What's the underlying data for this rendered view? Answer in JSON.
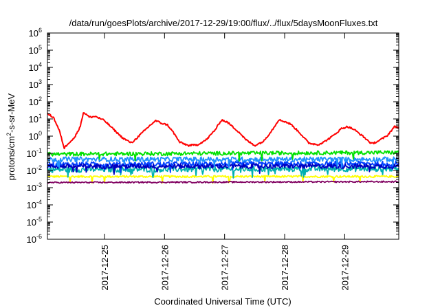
{
  "chart_data": {
    "type": "line",
    "title": "/data/run/goesPlots/archive/2017-12-29/19:00/flux/../flux/5daysMoonFluxes.txt",
    "xlabel": "Coordinated Universal Time (UTC)",
    "ylabel_parts": [
      "protons/cm",
      "2",
      "-s-sr-MeV"
    ],
    "y_scale": "log",
    "ylim": [
      -6,
      6
    ],
    "y_ticks": [
      {
        "exp": 6,
        "base": "10",
        "sup": "6"
      },
      {
        "exp": 5,
        "base": "10",
        "sup": "5"
      },
      {
        "exp": 4,
        "base": "10",
        "sup": "4"
      },
      {
        "exp": 3,
        "base": "10",
        "sup": "3"
      },
      {
        "exp": 2,
        "base": "10",
        "sup": "2"
      },
      {
        "exp": 1,
        "base": "10",
        "sup": "1"
      },
      {
        "exp": 0,
        "base": "10",
        "sup": "0"
      },
      {
        "exp": -1,
        "base": "10",
        "sup": "-1"
      },
      {
        "exp": -2,
        "base": "10",
        "sup": "-2"
      },
      {
        "exp": -3,
        "base": "10",
        "sup": "-3"
      },
      {
        "exp": -4,
        "base": "10",
        "sup": "-4"
      },
      {
        "exp": -5,
        "base": "10",
        "sup": "-5"
      },
      {
        "exp": -6,
        "base": "10",
        "sup": "-6"
      }
    ],
    "x_range_days": [
      0,
      5.85
    ],
    "x_ticks": [
      {
        "day": 0.95,
        "label": "2017-12-25"
      },
      {
        "day": 1.95,
        "label": "2017-12-26"
      },
      {
        "day": 2.95,
        "label": "2017-12-27"
      },
      {
        "day": 3.95,
        "label": "2017-12-28"
      },
      {
        "day": 4.95,
        "label": "2017-12-29"
      }
    ],
    "grid": false,
    "series": [
      {
        "color": "#ff0000",
        "log_flux": [
          [
            0.0,
            1.3
          ],
          [
            0.1,
            1.1
          ],
          [
            0.2,
            0.3
          ],
          [
            0.28,
            -0.7
          ],
          [
            0.35,
            -0.4
          ],
          [
            0.45,
            -0.1
          ],
          [
            0.55,
            0.6
          ],
          [
            0.6,
            1.4
          ],
          [
            0.7,
            1.1
          ],
          [
            0.8,
            1.15
          ],
          [
            0.95,
            0.9
          ],
          [
            1.1,
            0.4
          ],
          [
            1.25,
            -0.1
          ],
          [
            1.4,
            -0.4
          ],
          [
            1.55,
            0.1
          ],
          [
            1.7,
            0.6
          ],
          [
            1.8,
            0.9
          ],
          [
            1.9,
            0.75
          ],
          [
            2.0,
            0.65
          ],
          [
            2.1,
            0.2
          ],
          [
            2.2,
            -0.35
          ],
          [
            2.35,
            -0.55
          ],
          [
            2.5,
            -0.5
          ],
          [
            2.65,
            -0.2
          ],
          [
            2.8,
            0.4
          ],
          [
            2.9,
            0.95
          ],
          [
            3.0,
            0.8
          ],
          [
            3.1,
            0.5
          ],
          [
            3.2,
            0.2
          ],
          [
            3.3,
            -0.2
          ],
          [
            3.45,
            -0.55
          ],
          [
            3.6,
            -0.3
          ],
          [
            3.75,
            0.4
          ],
          [
            3.85,
            0.95
          ],
          [
            3.95,
            0.85
          ],
          [
            4.05,
            0.7
          ],
          [
            4.2,
            0.2
          ],
          [
            4.35,
            -0.4
          ],
          [
            4.5,
            -0.5
          ],
          [
            4.6,
            -0.35
          ],
          [
            4.75,
            0.0
          ],
          [
            4.9,
            0.45
          ],
          [
            5.0,
            0.55
          ],
          [
            5.1,
            0.4
          ],
          [
            5.25,
            0.0
          ],
          [
            5.4,
            -0.45
          ],
          [
            5.5,
            -0.3
          ],
          [
            5.65,
            0.0
          ],
          [
            5.78,
            0.55
          ],
          [
            5.85,
            0.5
          ]
        ]
      },
      {
        "color": "#00e000",
        "log_flux": [
          [
            0.0,
            -1.05
          ],
          [
            5.85,
            -0.95
          ]
        ]
      },
      {
        "color": "#1e90ff",
        "log_flux": [
          [
            0.0,
            -1.35
          ],
          [
            5.85,
            -1.35
          ]
        ]
      },
      {
        "color": "#0040ff",
        "log_flux": [
          [
            0.0,
            -1.65
          ],
          [
            5.85,
            -1.6
          ]
        ]
      },
      {
        "color": "#00b0b0",
        "log_flux": [
          [
            0.0,
            -1.95
          ],
          [
            5.85,
            -1.9
          ]
        ]
      },
      {
        "color": "#0000c0",
        "log_flux": [
          [
            0.0,
            -1.75
          ],
          [
            5.85,
            -1.75
          ]
        ]
      },
      {
        "color": "#ffff00",
        "log_flux": [
          [
            0.0,
            -2.35
          ],
          [
            5.85,
            -2.35
          ]
        ]
      },
      {
        "color": "#800060",
        "log_flux": [
          [
            0.0,
            -2.7
          ],
          [
            5.85,
            -2.65
          ]
        ]
      }
    ]
  }
}
